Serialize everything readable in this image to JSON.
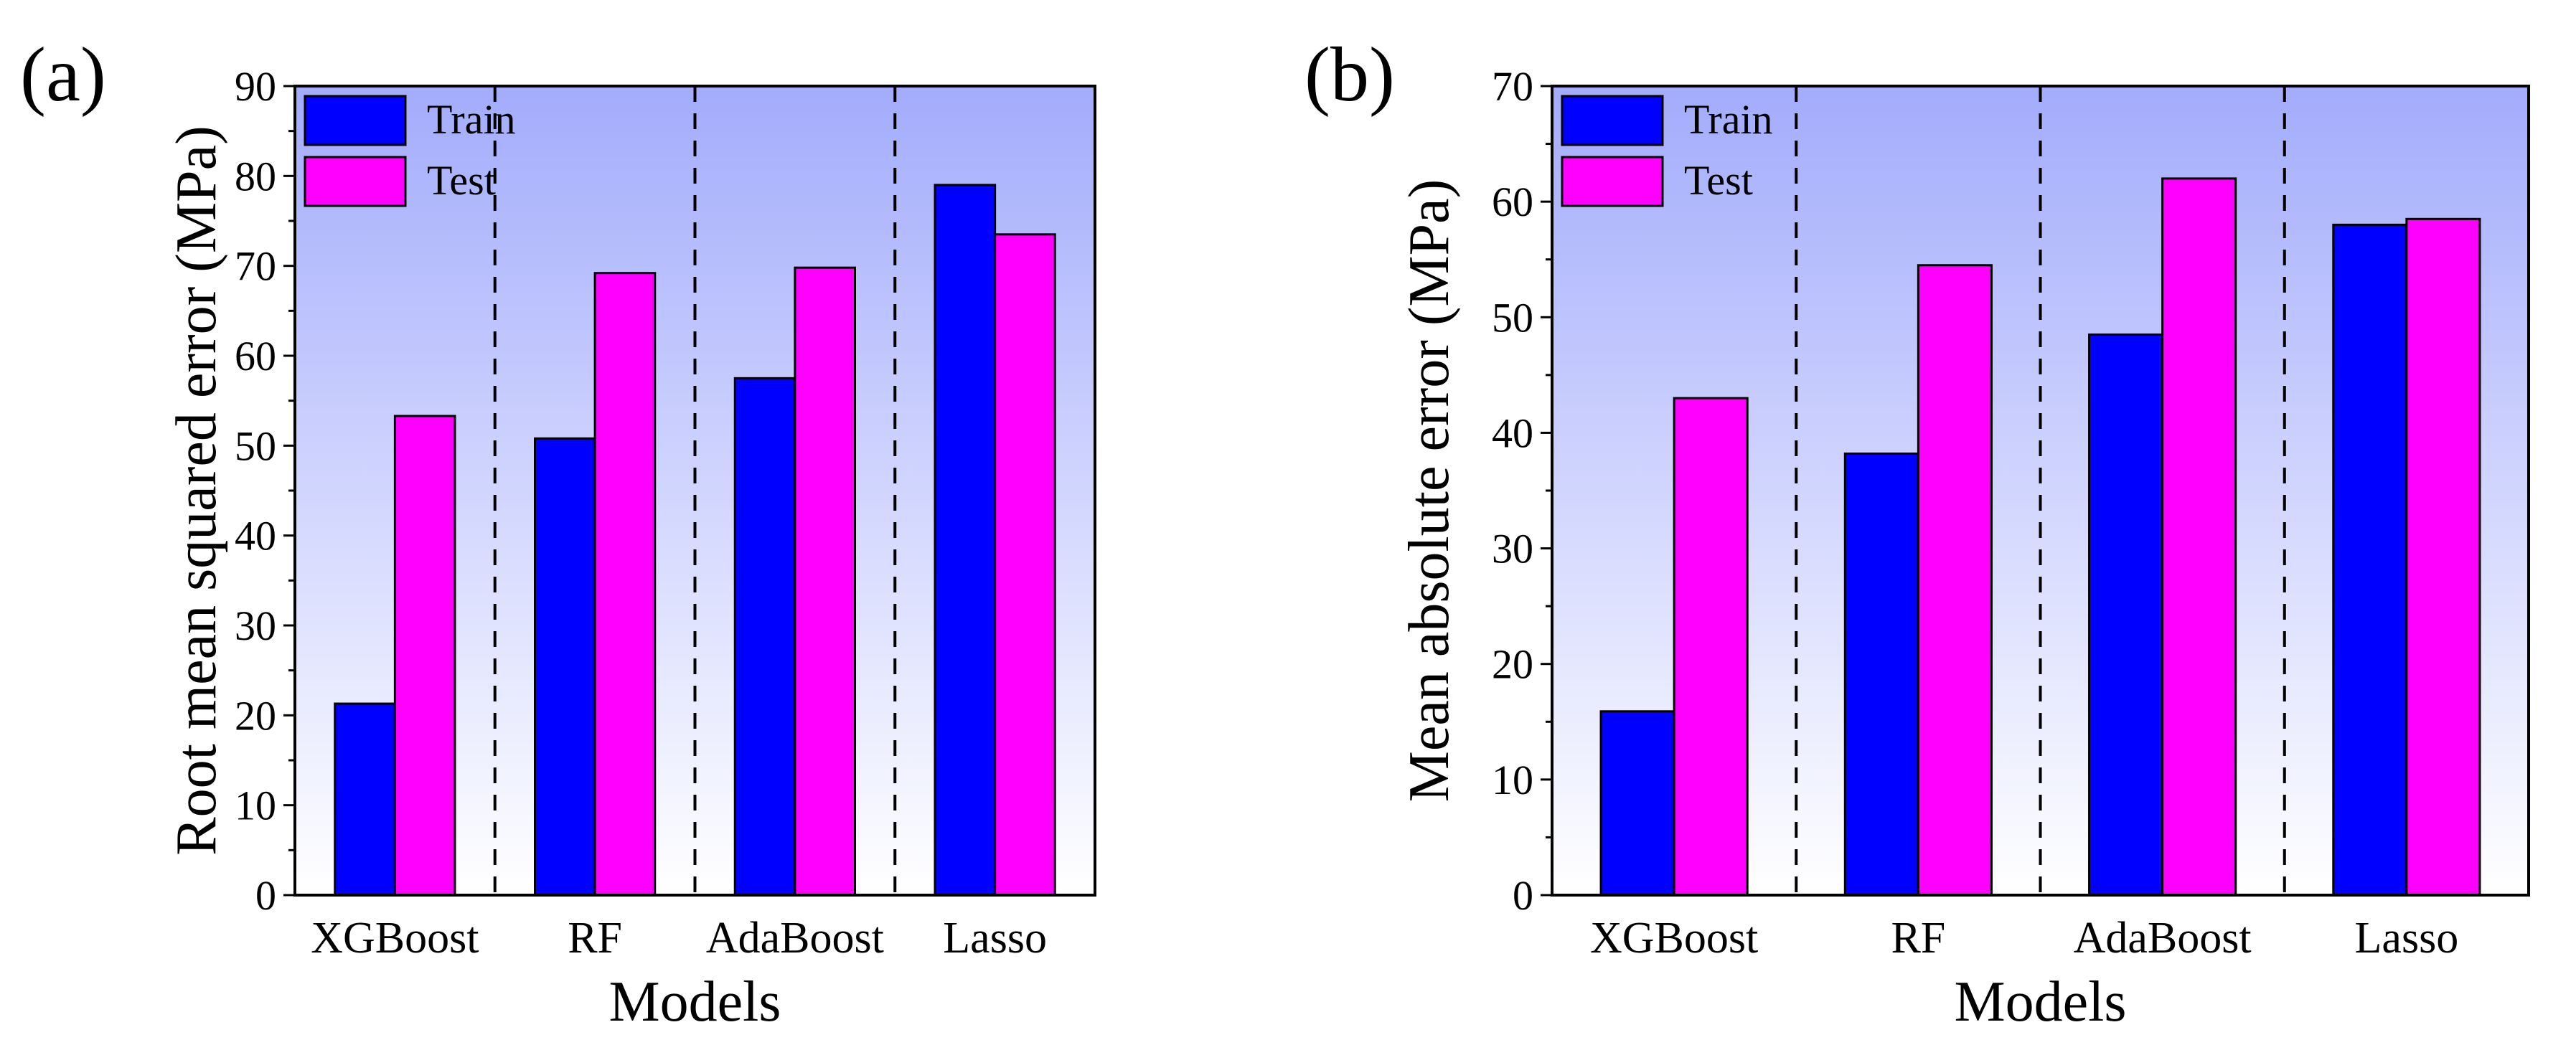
{
  "chart_data": [
    {
      "panel_label": "(a)",
      "type": "bar",
      "categories": [
        "XGBoost",
        "RF",
        "AdaBoost",
        "Lasso"
      ],
      "series": [
        {
          "name": "Train",
          "color": "#0000ff",
          "values": [
            21.3,
            50.8,
            57.5,
            79.0
          ]
        },
        {
          "name": "Test",
          "color": "#ff00ff",
          "values": [
            53.3,
            69.2,
            69.8,
            73.5
          ]
        }
      ],
      "xlabel": "Models",
      "ylabel": "Root mean squared error (MPa)",
      "ylim": [
        0,
        90
      ],
      "yticks": [
        0,
        10,
        20,
        30,
        40,
        50,
        60,
        70,
        80,
        90
      ],
      "legend": "top-left",
      "background": {
        "top": "#a3acfc",
        "bottom": "#ffffff"
      }
    },
    {
      "panel_label": "(b)",
      "type": "bar",
      "categories": [
        "XGBoost",
        "RF",
        "AdaBoost",
        "Lasso"
      ],
      "series": [
        {
          "name": "Train",
          "color": "#0000ff",
          "values": [
            15.9,
            38.2,
            48.5,
            58.0
          ]
        },
        {
          "name": "Test",
          "color": "#ff00ff",
          "values": [
            43.0,
            54.5,
            62.0,
            58.5
          ]
        }
      ],
      "xlabel": "Models",
      "ylabel": "Mean absolute error (MPa)",
      "ylim": [
        0,
        70
      ],
      "yticks": [
        0,
        10,
        20,
        30,
        40,
        50,
        60,
        70
      ],
      "legend": "top-left",
      "background": {
        "top": "#a3acfc",
        "bottom": "#ffffff"
      }
    }
  ]
}
